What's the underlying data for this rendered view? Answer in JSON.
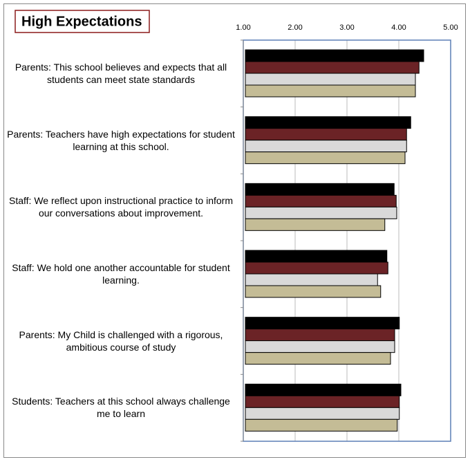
{
  "chart_data": {
    "type": "barh",
    "title": "High Expectations",
    "categories": [
      "Parents: This school believes and expects that all students can meet state standards",
      "Parents: Teachers have high expectations for student learning at this school.",
      "Staff: We reflect upon instructional practice to inform our conversations about improvement.",
      "Staff: We hold one another accountable for student learning.",
      "Parents: My Child is challenged with a rigorous, ambitious course of study",
      "Students: Teachers at this school always challenge me to learn"
    ],
    "series": [
      {
        "color": "#000000",
        "values": [
          4.48,
          4.23,
          3.91,
          3.77,
          4.01,
          4.04
        ]
      },
      {
        "color": "#6b2326",
        "values": [
          4.39,
          4.15,
          3.95,
          3.79,
          3.92,
          4.01
        ]
      },
      {
        "color": "#d9d9d9",
        "values": [
          4.32,
          4.15,
          3.96,
          3.59,
          3.92,
          4.01
        ]
      },
      {
        "color": "#c4bc96",
        "values": [
          4.32,
          4.12,
          3.73,
          3.65,
          3.84,
          3.97
        ]
      }
    ],
    "xlim": [
      1,
      5
    ],
    "xticks": [
      {
        "value": 1,
        "label": "1.00"
      },
      {
        "value": 2,
        "label": "2.00"
      },
      {
        "value": 3,
        "label": "3.00"
      },
      {
        "value": 4,
        "label": "4.00"
      },
      {
        "value": 5,
        "label": "5.00"
      }
    ],
    "grid": true
  }
}
